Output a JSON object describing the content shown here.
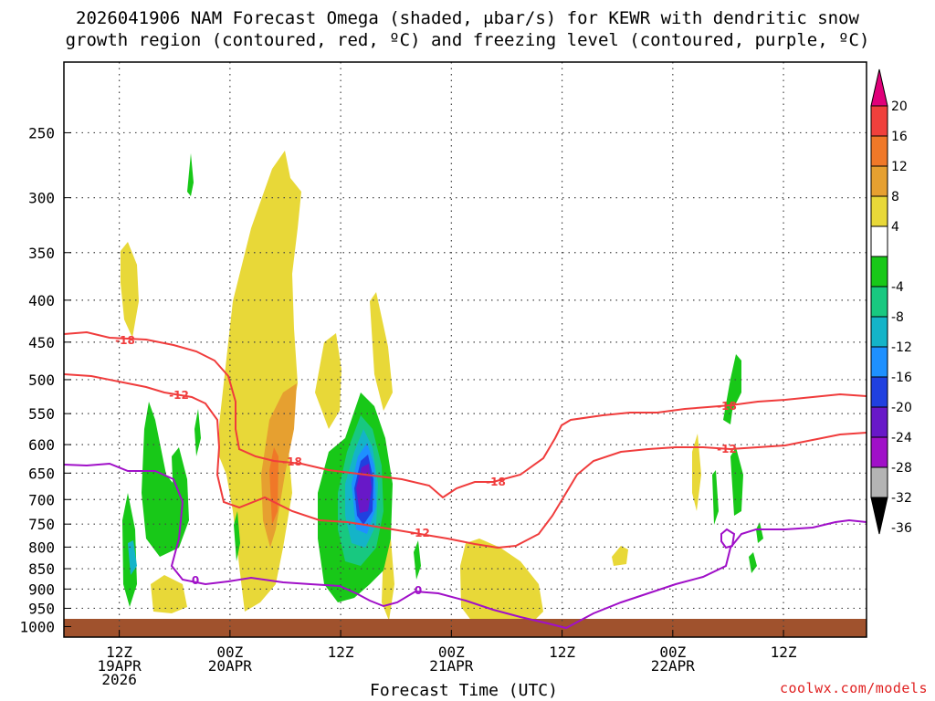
{
  "title_line_1": "2026041906 NAM Forecast Omega (shaded, μbar/s) for KEWR with dendritic snow",
  "title_line_2": "growth region (contoured, red, ºC) and freezing level (contoured, purple, ºC)",
  "credit": "coolwx.com/models",
  "chart_data": {
    "type": "heatmap",
    "xlabel": "Forecast Time (UTC)",
    "ylabel": "",
    "y_axis": {
      "unit": "hPa",
      "ticks": [
        250,
        300,
        350,
        400,
        450,
        500,
        550,
        600,
        650,
        700,
        750,
        800,
        850,
        900,
        950,
        1000
      ],
      "range": [
        205,
        1030
      ],
      "scale": "log-pressure",
      "grid": true
    },
    "x_axis": {
      "range": [
        "2026-04-19 06Z",
        "2026-04-22 21Z"
      ],
      "ticks": [
        {
          "time": "2026-04-19 12Z",
          "lines": [
            "12Z",
            "19APR",
            "2026"
          ]
        },
        {
          "time": "2026-04-20 00Z",
          "lines": [
            "00Z",
            "20APR"
          ]
        },
        {
          "time": "2026-04-20 12Z",
          "lines": [
            "12Z"
          ]
        },
        {
          "time": "2026-04-21 00Z",
          "lines": [
            "00Z",
            "21APR"
          ]
        },
        {
          "time": "2026-04-21 12Z",
          "lines": [
            "12Z"
          ]
        },
        {
          "time": "2026-04-22 00Z",
          "lines": [
            "00Z",
            "22APR"
          ]
        },
        {
          "time": "2026-04-22 12Z",
          "lines": [
            "12Z"
          ]
        }
      ],
      "grid": true
    },
    "colorbar": {
      "unit": "μbar/s",
      "labels": [
        "20",
        "16",
        "12",
        "8",
        "4",
        "-4",
        "-8",
        "-12",
        "-16",
        "-20",
        "-24",
        "-28",
        "-32",
        "-36"
      ],
      "bins": [
        {
          "range": "> 20",
          "color": "#e0007a"
        },
        {
          "range": "16 to 20",
          "color": "#f0403c"
        },
        {
          "range": "12 to 16",
          "color": "#f07828"
        },
        {
          "range": "8 to 12",
          "color": "#e6a030"
        },
        {
          "range": "4 to 8",
          "color": "#e8d838"
        },
        {
          "range": "-4 to 4",
          "color": "#ffffff"
        },
        {
          "range": "-8 to -4",
          "color": "#18c818"
        },
        {
          "range": "-12 to -8",
          "color": "#18c880"
        },
        {
          "range": "-16 to -12",
          "color": "#14b4c8"
        },
        {
          "range": "-20 to -16",
          "color": "#1e90ff"
        },
        {
          "range": "-24 to -20",
          "color": "#2040e0"
        },
        {
          "range": "-28 to -24",
          "color": "#6818c8"
        },
        {
          "range": "-32 to -28",
          "color": "#a010c8"
        },
        {
          "range": "-36 to -32",
          "color": "#b4b4b4"
        },
        {
          "range": "< -36",
          "color": "#000000"
        }
      ]
    },
    "contours": [
      {
        "name": "-18",
        "color": "#f03c3c",
        "label": "-18"
      },
      {
        "name": "-12",
        "color": "#f03c3c",
        "label": "-12"
      },
      {
        "name": "0",
        "color": "#a010c8",
        "label": "0"
      }
    ],
    "ground_color": "#a0522d"
  }
}
